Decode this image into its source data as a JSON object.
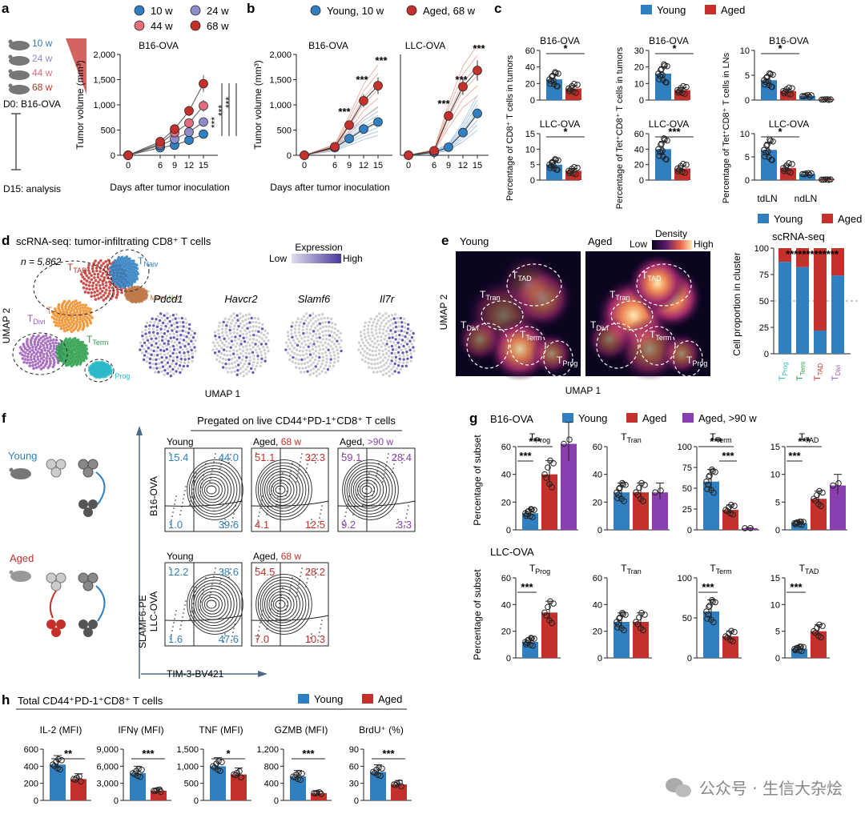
{
  "colors": {
    "young": "#2f7fc1",
    "aged": "#c4302b",
    "aged90": "#8a3fb0",
    "w10": "#2f7fc1",
    "w24": "#8c8cc9",
    "w44": "#e06c7c",
    "w68": "#c4302b",
    "tprog": "#2bb9c8",
    "tterm": "#2a9d4a",
    "ttad": "#c4302b",
    "tdivi": "#9b59b6"
  },
  "panels": {
    "a": "a",
    "b": "b",
    "c": "c",
    "d": "d",
    "e": "e",
    "f": "f",
    "g": "g",
    "h": "h"
  },
  "a": {
    "legend": [
      "10 w",
      "24 w",
      "44 w",
      "68 w"
    ],
    "mice": [
      "10 w",
      "24 w",
      "44 w",
      "68 w"
    ],
    "d0": "D0: B16-OVA",
    "d15": "D15: analysis",
    "title": "B16-OVA",
    "ylabel": "Tumor volume (mm³)",
    "xlabel": "Days after tumor inoculation",
    "yticks": [
      "0",
      "500",
      "1,000",
      "1,500",
      "2,000"
    ],
    "xticks": [
      "0",
      "6",
      "9",
      "12",
      "15"
    ],
    "stars": [
      "***",
      "***",
      "***"
    ]
  },
  "b": {
    "legend": [
      "Young, 10 w",
      "Aged, 68 w"
    ],
    "titles": [
      "B16-OVA",
      "LLC-OVA"
    ],
    "ylabel": "Tumor volume (mm³)",
    "xlabel": "Days after tumor inoculation",
    "yticks": [
      "0",
      "500",
      "1,000",
      "1,500",
      "2,000"
    ],
    "xticks": [
      "0",
      "6",
      "9",
      "12",
      "15"
    ],
    "stars": [
      "***",
      "***",
      "***"
    ]
  },
  "c": {
    "legend": [
      "Young",
      "Aged"
    ],
    "col1": {
      "ylabel": "Percentage of CD8⁺ T cells in tumors",
      "t1": "B16-OVA",
      "t2": "LLC-OVA",
      "s1": "*",
      "s2": "*",
      "y1": [
        "0",
        "20",
        "40",
        "60"
      ],
      "y2": [
        "0",
        "5",
        "10",
        "15"
      ]
    },
    "col2": {
      "ylabel": "Percentage of Tet⁺CD8⁺ T cells in tumors",
      "t1": "B16-OVA",
      "t2": "LLC-OVA",
      "s1": "*",
      "s2": "***",
      "y1": [
        "0",
        "10",
        "20",
        "30"
      ],
      "y2": [
        "0",
        "20",
        "40",
        "60"
      ]
    },
    "col3": {
      "ylabel": "Percentage of Tet⁺CD8⁺ T cells in LNs",
      "t1": "B16-OVA",
      "t2": "LLC-OVA",
      "s1": "*",
      "s2": "*",
      "y1": [
        "0",
        "5",
        "10"
      ],
      "y2": [
        "0",
        "5",
        "10"
      ],
      "x": [
        "tdLN",
        "ndLN"
      ]
    }
  },
  "d": {
    "title": "scRNA-seq: tumor-infiltrating CD8⁺ T cells",
    "n": "n = 5,862",
    "clusters": [
      "TTAD",
      "TNaiv",
      "TMem-like",
      "TTran",
      "TDivi",
      "TTerm",
      "TProg"
    ],
    "expression": "Expression",
    "low": "Low",
    "high": "High",
    "genes": [
      "Pdcd1",
      "Havcr2",
      "Slamf6",
      "Il7r"
    ],
    "ylabel": "UMAP 2",
    "xlabel": "UMAP 1"
  },
  "e": {
    "young": "Young",
    "aged": "Aged",
    "density": "Density",
    "low": "Low",
    "high": "High",
    "labels": [
      "TTAD",
      "TTran",
      "TDivi",
      "TTerm",
      "TProg"
    ],
    "ylabel": "UMAP 2",
    "xlabel": "UMAP 1",
    "legend": [
      "Young",
      "Aged"
    ],
    "subtitle": "scRNA-seq",
    "bar_ylabel": "Cell proportion in cluster",
    "yticks": [
      "0",
      "25",
      "50",
      "75",
      "100"
    ],
    "cats": [
      "TProg",
      "TTerm",
      "TTAD",
      "TDivi"
    ],
    "stars": "*************"
  },
  "f": {
    "title": "Pregated on live CD44⁺PD-1⁺CD8⁺ T cells",
    "young": "Young",
    "aged": "Aged",
    "ylabel": "SLAMF6-PE",
    "xlabel": "TIM-3-BV421",
    "rows": [
      "B16-OVA",
      "LLC-OVA"
    ],
    "headers": [
      "Young",
      "Aged, 68 w",
      "Aged, >90 w",
      "Young",
      "Aged, 68 w"
    ],
    "plots": [
      {
        "tl": "15.4",
        "tr": "44.0",
        "bl": "1.0",
        "br": "39.6"
      },
      {
        "tl": "51.1",
        "tr": "32.3",
        "bl": "4.1",
        "br": "12.5"
      },
      {
        "tl": "59.1",
        "tr": "28.4",
        "bl": "9.2",
        "br": "3.3"
      },
      {
        "tl": "12.2",
        "tr": "38.6",
        "bl": "1.6",
        "br": "47.6"
      },
      {
        "tl": "54.5",
        "tr": "28.2",
        "bl": "7.0",
        "br": "10.3"
      }
    ]
  },
  "g": {
    "legend": [
      "B16-OVA",
      "Young",
      "Aged",
      "Aged, >90 w"
    ],
    "row2": "LLC-OVA",
    "ylabel": "Percentage of subset",
    "titles": [
      "TProg",
      "TTran",
      "TTerm",
      "TTAD"
    ],
    "r1y": [
      [
        "0",
        "20",
        "40",
        "60"
      ],
      [
        "0",
        "20",
        "40",
        "60"
      ],
      [
        "0",
        "25",
        "50",
        "75",
        "100"
      ],
      [
        "0",
        "5",
        "10",
        "15"
      ]
    ],
    "r2y": [
      [
        "0",
        "20",
        "40",
        "60"
      ],
      [
        "0",
        "20",
        "40",
        "60"
      ],
      [
        "0",
        "50",
        "100"
      ],
      [
        "0",
        "5",
        "10",
        "15"
      ]
    ],
    "stars": "***"
  },
  "h": {
    "title": "Total CD44⁺PD-1⁺CD8⁺ T cells",
    "legend": [
      "Young",
      "Aged"
    ],
    "titles": [
      "IL-2 (MFI)",
      "IFNγ (MFI)",
      "TNF (MFI)",
      "GZMB (MFI)",
      "BrdU⁺ (%)"
    ],
    "stars": [
      "**",
      "***",
      "*",
      "***",
      "***"
    ],
    "yticks": [
      [
        "0",
        "200",
        "400",
        "600"
      ],
      [
        "0",
        "3,000",
        "6,000",
        "9,000"
      ],
      [
        "0",
        "500",
        "1,000",
        "1,500"
      ],
      [
        "0",
        "400",
        "800",
        "1,200"
      ],
      [
        "0",
        "30",
        "60",
        "90"
      ]
    ]
  },
  "watermark": "公众号 · 生信大杂烩"
}
